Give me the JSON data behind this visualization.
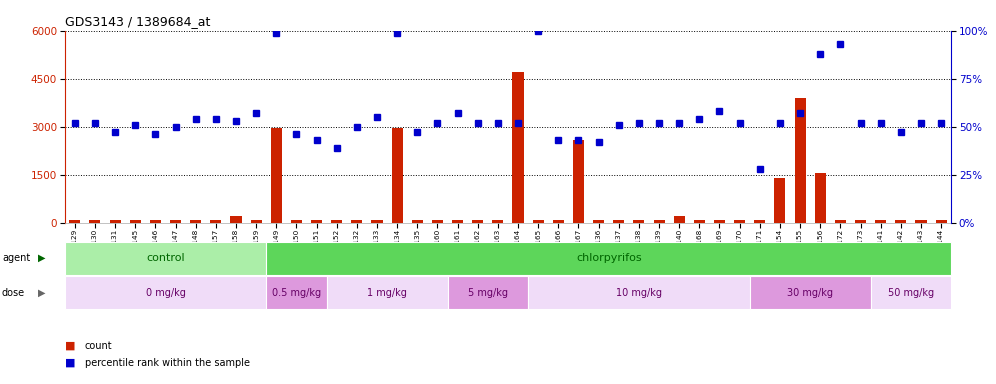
{
  "title": "GDS3143 / 1389684_at",
  "samples": [
    "GSM246129",
    "GSM246130",
    "GSM246131",
    "GSM246145",
    "GSM246146",
    "GSM246147",
    "GSM246148",
    "GSM246157",
    "GSM246158",
    "GSM246159",
    "GSM246149",
    "GSM246150",
    "GSM246151",
    "GSM246152",
    "GSM246132",
    "GSM246133",
    "GSM246134",
    "GSM246135",
    "GSM246160",
    "GSM246161",
    "GSM246162",
    "GSM246163",
    "GSM246164",
    "GSM246165",
    "GSM246166",
    "GSM246167",
    "GSM246136",
    "GSM246137",
    "GSM246138",
    "GSM246139",
    "GSM246140",
    "GSM246168",
    "GSM246169",
    "GSM246170",
    "GSM246171",
    "GSM246154",
    "GSM246155",
    "GSM246156",
    "GSM246172",
    "GSM246173",
    "GSM246141",
    "GSM246142",
    "GSM246143",
    "GSM246144"
  ],
  "count_values": [
    80,
    80,
    80,
    80,
    80,
    80,
    80,
    80,
    200,
    80,
    2950,
    80,
    80,
    80,
    80,
    80,
    2950,
    80,
    80,
    80,
    80,
    80,
    4700,
    80,
    80,
    2600,
    80,
    80,
    80,
    80,
    200,
    80,
    80,
    80,
    80,
    1400,
    3900,
    1550,
    80,
    80,
    80,
    80,
    80,
    80
  ],
  "percentile_values": [
    52,
    52,
    47,
    51,
    46,
    50,
    54,
    54,
    53,
    57,
    99,
    46,
    43,
    39,
    50,
    55,
    99,
    47,
    52,
    57,
    52,
    52,
    52,
    100,
    43,
    43,
    42,
    51,
    52,
    52,
    52,
    54,
    58,
    52,
    28,
    52,
    57,
    88,
    93,
    52,
    52,
    47,
    52,
    52
  ],
  "agent_groups": [
    {
      "label": "control",
      "start": 0,
      "end": 10,
      "color": "#ABEEA8"
    },
    {
      "label": "chlorpyrifos",
      "start": 10,
      "end": 44,
      "color": "#5DD65A"
    }
  ],
  "dose_groups": [
    {
      "label": "0 mg/kg",
      "start": 0,
      "end": 10,
      "color": "#F0DCF8"
    },
    {
      "label": "0.5 mg/kg",
      "start": 10,
      "end": 13,
      "color": "#DD99DD"
    },
    {
      "label": "1 mg/kg",
      "start": 13,
      "end": 19,
      "color": "#F0DCF8"
    },
    {
      "label": "5 mg/kg",
      "start": 19,
      "end": 23,
      "color": "#DD99DD"
    },
    {
      "label": "10 mg/kg",
      "start": 23,
      "end": 34,
      "color": "#F0DCF8"
    },
    {
      "label": "30 mg/kg",
      "start": 34,
      "end": 40,
      "color": "#DD99DD"
    },
    {
      "label": "50 mg/kg",
      "start": 40,
      "end": 44,
      "color": "#F0DCF8"
    }
  ],
  "ylim_left": [
    0,
    6000
  ],
  "ylim_right": [
    0,
    100
  ],
  "yticks_left": [
    0,
    1500,
    3000,
    4500,
    6000
  ],
  "yticks_right": [
    0,
    25,
    50,
    75,
    100
  ],
  "bar_color": "#CC2200",
  "dot_color": "#0000CC",
  "background_color": "#FFFFFF",
  "title_color": "#000000",
  "left_axis_color": "#CC2200",
  "right_axis_color": "#0000CC",
  "agent_text_color": "#006600",
  "dose_text_color": "#660066"
}
